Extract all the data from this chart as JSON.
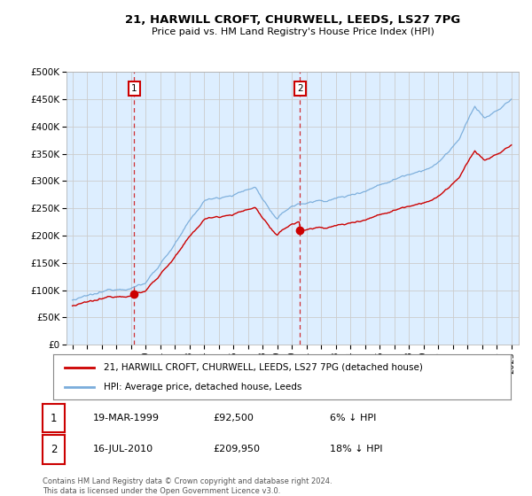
{
  "title": "21, HARWILL CROFT, CHURWELL, LEEDS, LS27 7PG",
  "subtitle": "Price paid vs. HM Land Registry's House Price Index (HPI)",
  "footnote": "Contains HM Land Registry data © Crown copyright and database right 2024.\nThis data is licensed under the Open Government Licence v3.0.",
  "legend_line1": "21, HARWILL CROFT, CHURWELL, LEEDS, LS27 7PG (detached house)",
  "legend_line2": "HPI: Average price, detached house, Leeds",
  "sale1_label": "1",
  "sale1_date": "19-MAR-1999",
  "sale1_price": "£92,500",
  "sale1_note": "6% ↓ HPI",
  "sale1_year": 1999.21,
  "sale1_value": 92500,
  "sale2_label": "2",
  "sale2_date": "16-JUL-2010",
  "sale2_price": "£209,950",
  "sale2_note": "18% ↓ HPI",
  "sale2_year": 2010.54,
  "sale2_value": 209950,
  "price_color": "#cc0000",
  "hpi_color": "#7aaddb",
  "fig_bg_color": "#ffffff",
  "plot_bg_color": "#ddeeff",
  "grid_color": "#cccccc",
  "ylim": [
    0,
    500000
  ],
  "yticks": [
    0,
    50000,
    100000,
    150000,
    200000,
    250000,
    300000,
    350000,
    400000,
    450000,
    500000
  ],
  "xmin": 1994.6,
  "xmax": 2025.5
}
